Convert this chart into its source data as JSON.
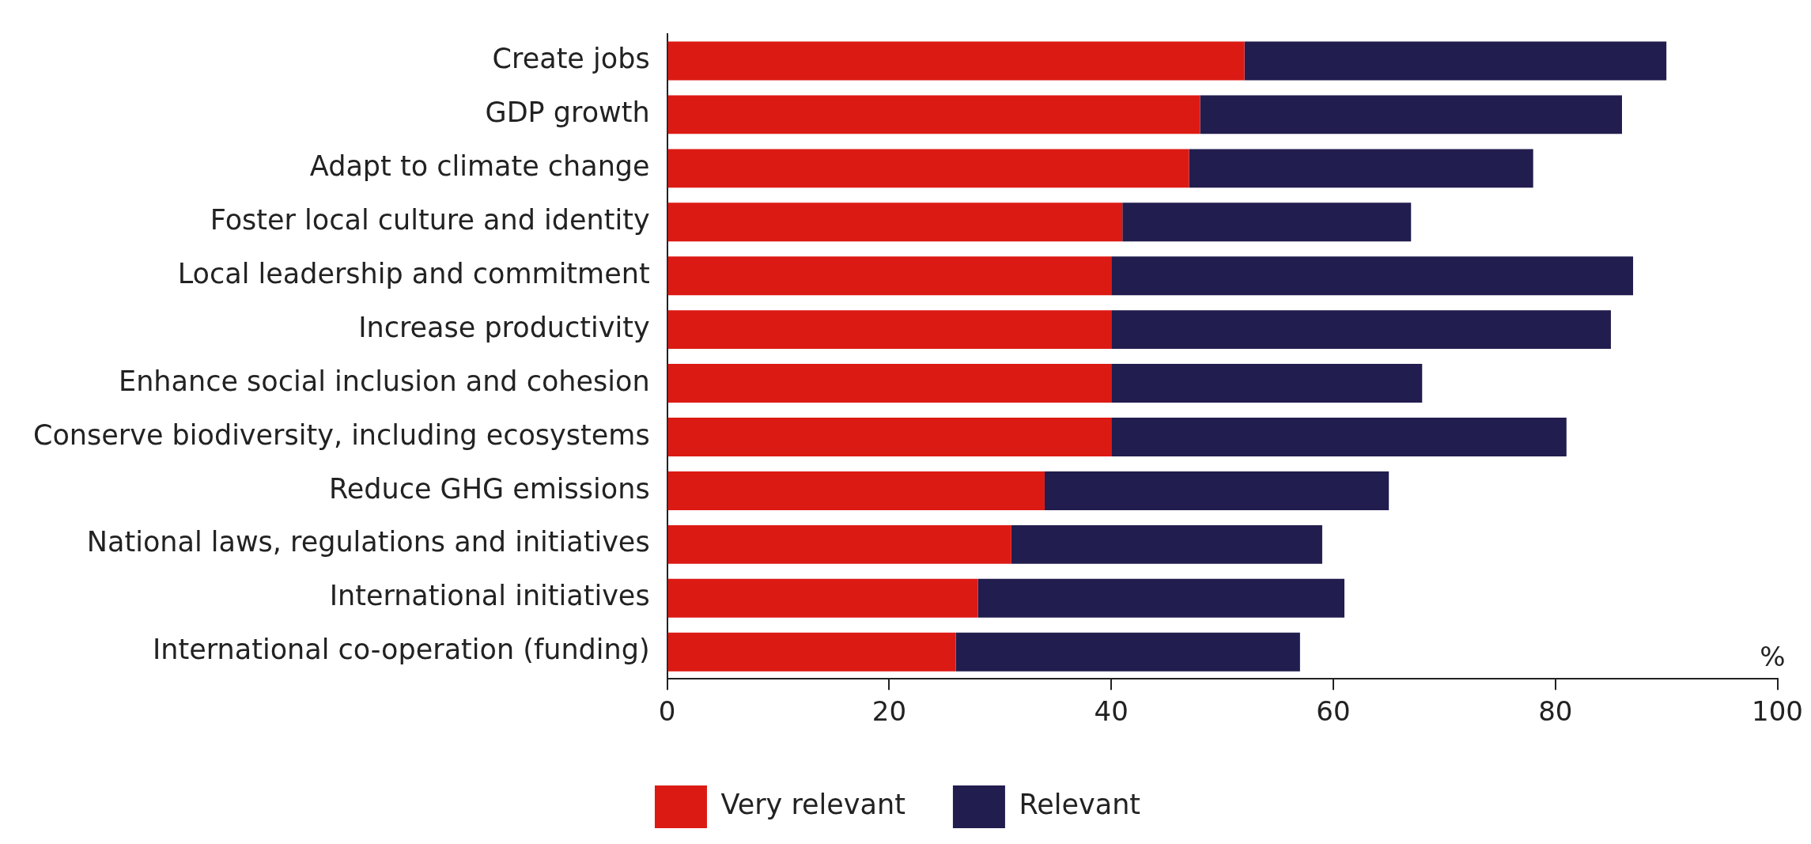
{
  "chart_data": {
    "type": "bar",
    "orientation": "horizontal",
    "stacked": true,
    "xlabel": "%",
    "categories": [
      "Create jobs",
      "GDP growth",
      "Adapt to climate change",
      "Foster local culture and identity",
      "Local leadership and commitment",
      "Increase productivity",
      "Enhance social inclusion and cohesion",
      "Conserve biodiversity, including ecosystems",
      "Reduce GHG emissions",
      "National laws, regulations and initiatives",
      "International initiatives",
      "International co-operation (funding)"
    ],
    "series": [
      {
        "name": "Very relevant",
        "color": "#dc1a14",
        "values": [
          52,
          48,
          47,
          41,
          40,
          40,
          40,
          40,
          34,
          31,
          28,
          26
        ]
      },
      {
        "name": "Relevant",
        "color": "#211d4e",
        "values": [
          38,
          38,
          31,
          26,
          47,
          45,
          28,
          41,
          31,
          28,
          33,
          31
        ]
      }
    ],
    "xlim": [
      0,
      100
    ],
    "xticks": [
      0,
      20,
      40,
      60,
      80,
      100
    ],
    "grid": false,
    "legend": "bottom"
  }
}
